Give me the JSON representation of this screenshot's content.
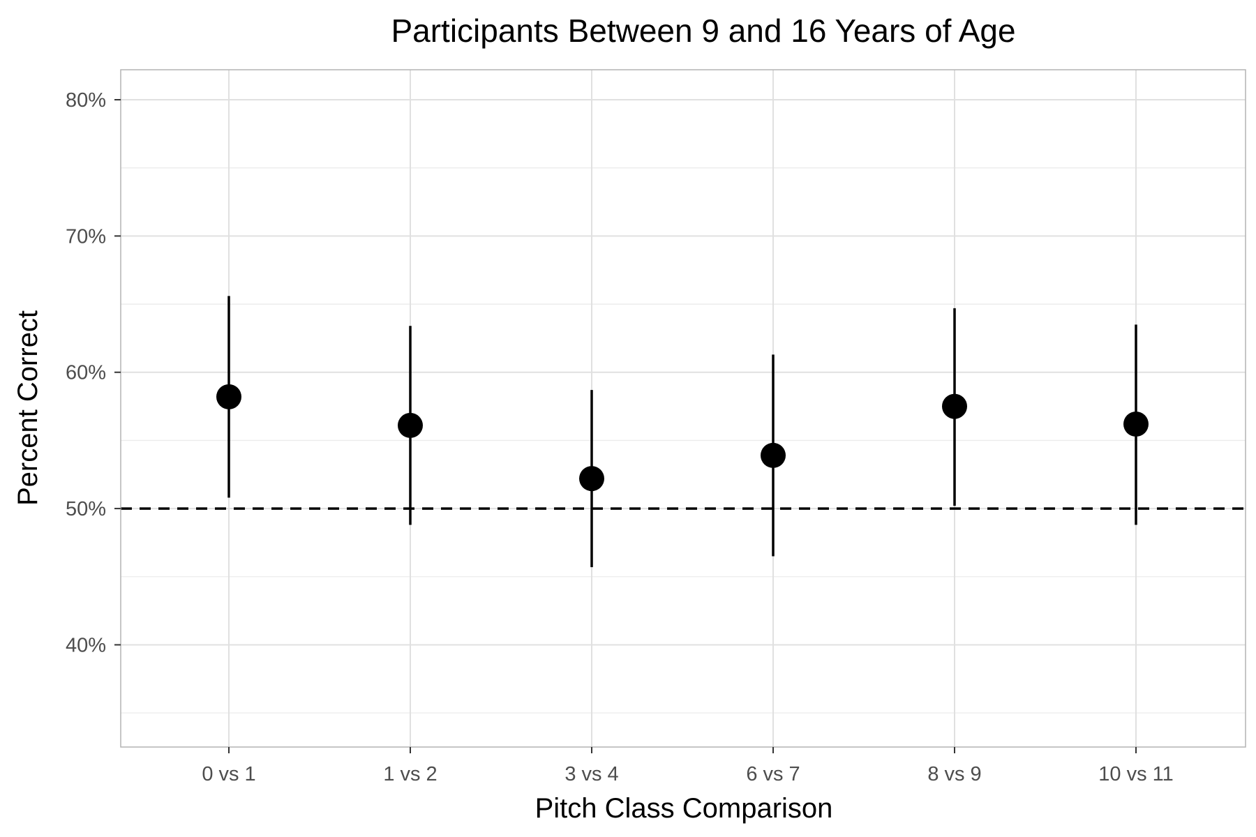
{
  "chart_data": {
    "type": "scatter",
    "title": "Participants Between 9 and 16 Years of Age",
    "xlabel": "Pitch Class Comparison",
    "ylabel": "Percent Correct",
    "categories": [
      "0 vs 1",
      "1 vs 2",
      "3 vs 4",
      "6 vs 7",
      "8 vs 9",
      "10 vs 11"
    ],
    "values": [
      58.2,
      56.1,
      52.2,
      53.9,
      57.5,
      56.2
    ],
    "error_low": [
      50.8,
      48.8,
      45.7,
      46.5,
      50.2,
      48.8
    ],
    "error_high": [
      65.6,
      63.4,
      58.7,
      61.3,
      64.7,
      63.5
    ],
    "reference_line": {
      "y": 50,
      "style": "dashed"
    },
    "ylim": [
      32.5,
      82.2
    ],
    "y_ticks": [
      40,
      50,
      60,
      70,
      80
    ],
    "y_tick_labels": [
      "40%",
      "50%",
      "60%",
      "70%",
      "80%"
    ],
    "y_minor_ticks": [
      35,
      45,
      55,
      65,
      75
    ],
    "grid": true,
    "colors": {
      "point": "#000000",
      "grid": "#e0e0e0",
      "panel_border": "#b3b3b3",
      "tick_text": "#4d4d4d"
    }
  }
}
